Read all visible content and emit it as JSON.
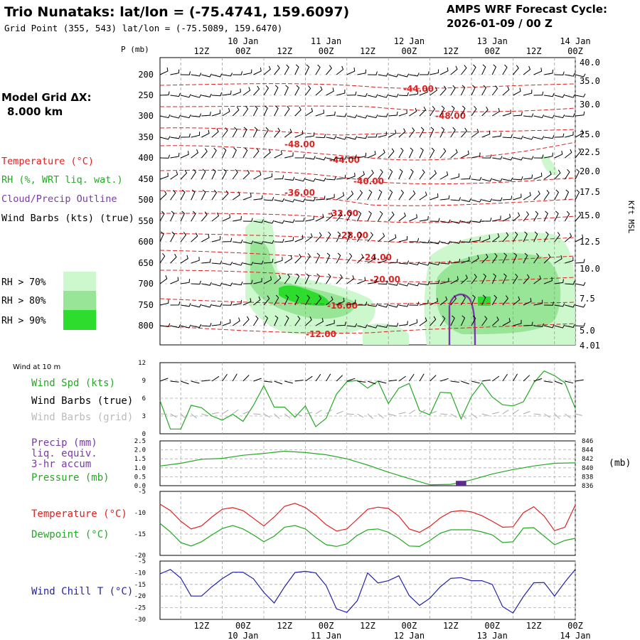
{
  "header": {
    "title": "Trio Nunataks:  lat/lon = (-75.4741, 159.6097)",
    "subtitle": "Grid Point (355, 543) lat/lon = (-75.5089, 159.6470)",
    "cycle_line1": "AMPS WRF Forecast Cycle:",
    "cycle_line2": "2026-01-09 / 00  Z"
  },
  "left_panel": {
    "grid_label": "Model Grid ΔX:",
    "grid_value": "8.000 km",
    "temperature_legend": "Temperature (°C)",
    "rh_legend": "RH (%, WRT liq. wat.)",
    "cloud_legend": "Cloud/Precip Outline",
    "wind_legend": "Wind Barbs (kts) (true)",
    "rh_levels": [
      "RH > 70%",
      "RH > 80%",
      "RH > 90%"
    ],
    "rh_colors": [
      "#cdf7cd",
      "#98e598",
      "#2edc2e"
    ]
  },
  "time_axis": {
    "hours": [
      "12Z",
      "00Z",
      "12Z",
      "00Z",
      "12Z",
      "00Z",
      "12Z",
      "00Z",
      "12Z",
      "00Z"
    ],
    "dates": [
      "10 Jan",
      "11 Jan",
      "12 Jan",
      "13 Jan",
      "14 Jan"
    ]
  },
  "chart_data": [
    {
      "type": "line",
      "id": "upper-air",
      "ylabel_left": "P (mb)",
      "ylabel_right": "Kft MSL",
      "pressure_ticks": [
        "200",
        "250",
        "300",
        "350",
        "400",
        "450",
        "500",
        "550",
        "600",
        "650",
        "700",
        "750",
        "800"
      ],
      "height_ticks": [
        "40.0",
        "35.0",
        "30.0",
        "25.0",
        "22.5",
        "20.0",
        "17.5",
        "15.0",
        "12.5",
        "10.0",
        "7.5",
        "5.0",
        "4.01"
      ],
      "temperature_labels": [
        "-44.00",
        "-48.00",
        "-48.00",
        "-44.00",
        "-40.00",
        "-36.00",
        "-32.00",
        "-28.00",
        "-24.00",
        "-20.00",
        "-16.00",
        "-12.00"
      ]
    },
    {
      "type": "line",
      "id": "wind",
      "title": "Wind at 10 m",
      "legend": [
        "Wind Spd (kts)",
        "Wind Barbs (true)",
        "Wind Barbs (grid)"
      ],
      "yticks": [
        "12",
        "9",
        "6",
        "3",
        "0"
      ],
      "ylim": [
        0,
        12
      ],
      "x": [
        0,
        3,
        6,
        9,
        12,
        15,
        18,
        21,
        24,
        27,
        30,
        33,
        36,
        39,
        42,
        45,
        48,
        51,
        54,
        57,
        60,
        63,
        66,
        69,
        72,
        75,
        78,
        81,
        84,
        87,
        90,
        93,
        96,
        99,
        102,
        105,
        108,
        111,
        114,
        117,
        120
      ],
      "values": [
        5.6,
        0.8,
        0.8,
        4.8,
        4.4,
        3.0,
        2.3,
        3.3,
        2.1,
        4.8,
        8.1,
        4.5,
        4.5,
        2.8,
        4.7,
        1.2,
        2.6,
        6.7,
        8.8,
        9.0,
        7.7,
        8.9,
        5.1,
        7.7,
        8.5,
        3.9,
        3.2,
        7.0,
        6.9,
        2.5,
        6.3,
        8.6,
        6.2,
        4.9,
        4.7,
        5.4,
        8.6,
        10.6,
        9.8,
        8.6,
        4.3
      ]
    },
    {
      "type": "line",
      "id": "precip-pressure",
      "legend": [
        "Precip (mm)",
        "liq. equiv.",
        "3-hr accum",
        "Pressure (mb)"
      ],
      "right_unit": "(mb)",
      "yticks_left": [
        "2.5",
        "2.0",
        "1.5",
        "1.0",
        "0.5",
        "0.0"
      ],
      "yticks_right": [
        "846",
        "844",
        "842",
        "840",
        "838",
        "836"
      ],
      "precip_ylim": [
        0,
        2.5
      ],
      "pressure_ylim": [
        836,
        846
      ],
      "x": [
        0,
        6,
        12,
        18,
        24,
        30,
        36,
        42,
        48,
        54,
        60,
        66,
        72,
        78,
        84,
        90,
        96,
        102,
        108,
        114,
        120
      ],
      "pressure": [
        840.4,
        841.0,
        841.9,
        842.1,
        842.8,
        843.2,
        843.7,
        843.4,
        842.9,
        842.0,
        840.6,
        839.0,
        837.6,
        836.2,
        836.3,
        837.3,
        838.6,
        839.6,
        840.4,
        841.0,
        841.1
      ],
      "precip_bars": [
        {
          "x": 87,
          "value": 0.27
        }
      ]
    },
    {
      "type": "line",
      "id": "temperature",
      "legend": [
        "Temperature (°C)",
        "Dewpoint (°C)"
      ],
      "yticks": [
        "-5",
        "-10",
        "-15",
        "-20"
      ],
      "ylim": [
        -20,
        -5
      ],
      "x": [
        0,
        3,
        6,
        9,
        12,
        15,
        18,
        21,
        24,
        27,
        30,
        33,
        36,
        39,
        42,
        45,
        48,
        51,
        54,
        57,
        60,
        63,
        66,
        69,
        72,
        75,
        78,
        81,
        84,
        87,
        90,
        93,
        96,
        99,
        102,
        105,
        108,
        111,
        114,
        117,
        120
      ],
      "series": [
        {
          "name": "Temperature (°C)",
          "values": [
            -8.0,
            -9.5,
            -12.0,
            -13.8,
            -13.1,
            -11.0,
            -9.2,
            -8.8,
            -9.5,
            -11.3,
            -13.1,
            -11.0,
            -8.5,
            -7.8,
            -8.8,
            -10.6,
            -12.8,
            -14.3,
            -13.8,
            -11.5,
            -9.2,
            -8.7,
            -9.0,
            -10.8,
            -13.8,
            -14.6,
            -13.2,
            -11.2,
            -9.8,
            -9.5,
            -9.8,
            -10.7,
            -12.0,
            -13.4,
            -13.3,
            -10.0,
            -8.6,
            -10.8,
            -14.2,
            -13.4,
            -8.2
          ]
        },
        {
          "name": "Dewpoint (°C)",
          "values": [
            -12.5,
            -14.5,
            -17.0,
            -17.8,
            -16.8,
            -15.2,
            -13.7,
            -13.0,
            -13.8,
            -15.2,
            -16.8,
            -15.5,
            -13.4,
            -13.0,
            -13.8,
            -15.8,
            -17.5,
            -17.9,
            -17.3,
            -15.3,
            -14.0,
            -13.8,
            -14.6,
            -16.0,
            -17.8,
            -17.9,
            -16.5,
            -14.8,
            -14.0,
            -14.0,
            -14.0,
            -14.5,
            -15.2,
            -17.0,
            -16.8,
            -13.6,
            -13.5,
            -15.5,
            -17.5,
            -16.5,
            -16.0
          ]
        }
      ]
    },
    {
      "type": "line",
      "id": "wind-chill",
      "legend": [
        "Wind Chill T (°C)"
      ],
      "yticks": [
        "-5",
        "-10",
        "-15",
        "-20",
        "-25",
        "-30"
      ],
      "ylim": [
        -30,
        -5
      ],
      "x": [
        0,
        3,
        6,
        9,
        12,
        15,
        18,
        21,
        24,
        27,
        30,
        33,
        36,
        39,
        42,
        45,
        48,
        51,
        54,
        57,
        60,
        63,
        66,
        69,
        72,
        75,
        78,
        81,
        84,
        87,
        90,
        93,
        96,
        99,
        102,
        105,
        108,
        111,
        114,
        117,
        120
      ],
      "values": [
        -10.5,
        -8.6,
        -12.3,
        -20.0,
        -20.0,
        -16.0,
        -12.5,
        -9.8,
        -9.8,
        -12.6,
        -18.4,
        -23.0,
        -16.0,
        -9.9,
        -9.4,
        -10.1,
        -15.5,
        -25.5,
        -27.0,
        -22.0,
        -10.1,
        -14.4,
        -13.4,
        -11.3,
        -19.8,
        -24.0,
        -20.9,
        -16.0,
        -12.4,
        -12.1,
        -13.4,
        -13.4,
        -15.0,
        -24.5,
        -27.3,
        -20.2,
        -14.3,
        -14.2,
        -20.0,
        -14.0,
        -8.6
      ]
    }
  ]
}
